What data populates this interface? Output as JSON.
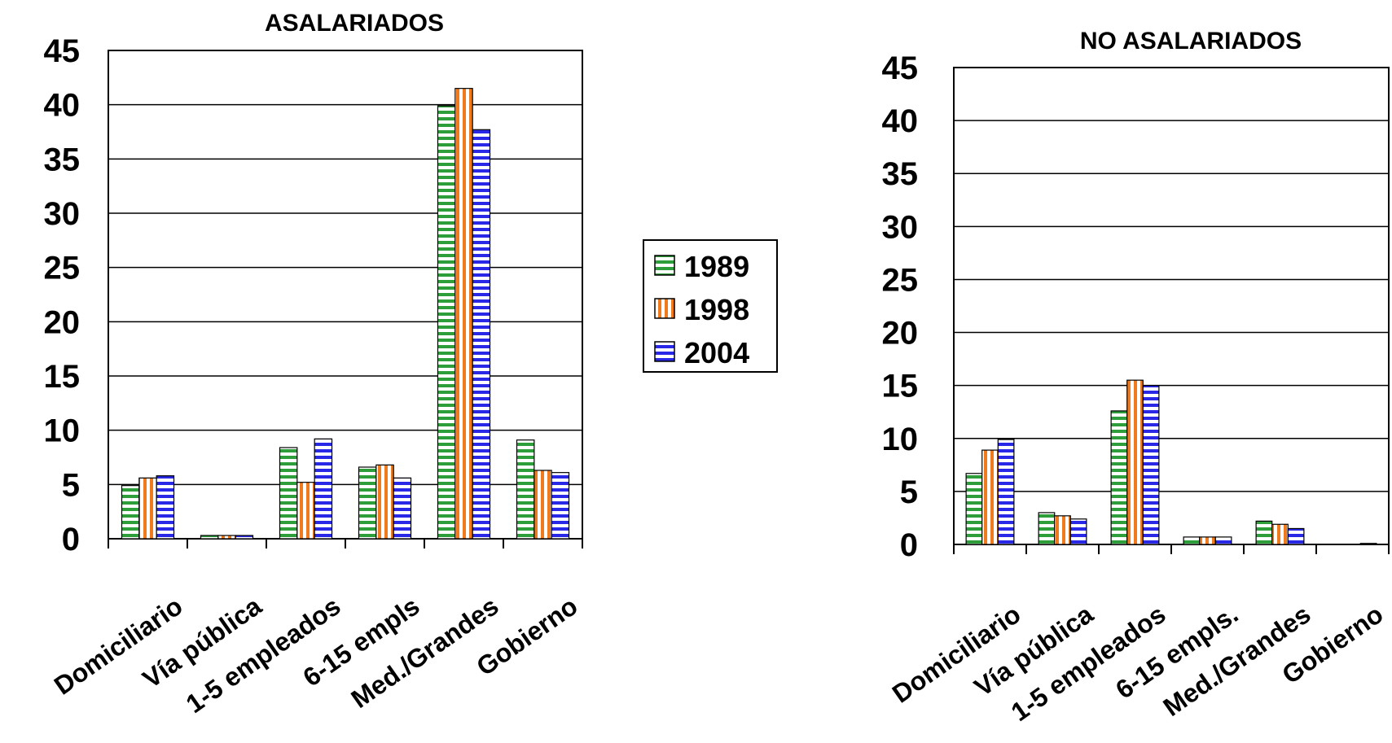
{
  "colors": {
    "1989": "#2e9e3a",
    "1998": "#f07a1e",
    "2004": "#2828e6"
  },
  "legend": {
    "items": [
      "1989",
      "1998",
      "2004"
    ]
  },
  "chart_data": [
    {
      "type": "bar",
      "title": "ASALARIADOS",
      "categories": [
        "Domiciliario",
        "Vía pública",
        "1-5 empleados",
        "6-15 empls",
        "Med./Grandes",
        "Gobierno"
      ],
      "series": [
        {
          "name": "1989",
          "values": [
            4.9,
            0.3,
            8.4,
            6.6,
            39.9,
            9.1
          ]
        },
        {
          "name": "1998",
          "values": [
            5.6,
            0.3,
            5.2,
            6.8,
            41.5,
            6.3
          ]
        },
        {
          "name": "2004",
          "values": [
            5.8,
            0.3,
            9.2,
            5.6,
            37.7,
            6.1
          ]
        }
      ],
      "ylim": [
        0,
        45
      ],
      "yticks": [
        0,
        5,
        10,
        15,
        20,
        25,
        30,
        35,
        40,
        45
      ],
      "grid": true
    },
    {
      "type": "bar",
      "title": "NO ASALARIADOS",
      "categories": [
        "Domiciliario",
        "Vía pública",
        "1-5 empleados",
        "6-15 empls.",
        "Med./Grandes",
        "Gobierno"
      ],
      "series": [
        {
          "name": "1989",
          "values": [
            6.7,
            3.0,
            12.6,
            0.7,
            2.2,
            0
          ]
        },
        {
          "name": "1998",
          "values": [
            8.9,
            2.7,
            15.5,
            0.7,
            1.9,
            0
          ]
        },
        {
          "name": "2004",
          "values": [
            9.9,
            2.4,
            15.0,
            0.7,
            1.5,
            0.1
          ]
        }
      ],
      "ylim": [
        0,
        45
      ],
      "yticks": [
        0,
        5,
        10,
        15,
        20,
        25,
        30,
        35,
        40,
        45
      ],
      "grid": true
    }
  ]
}
